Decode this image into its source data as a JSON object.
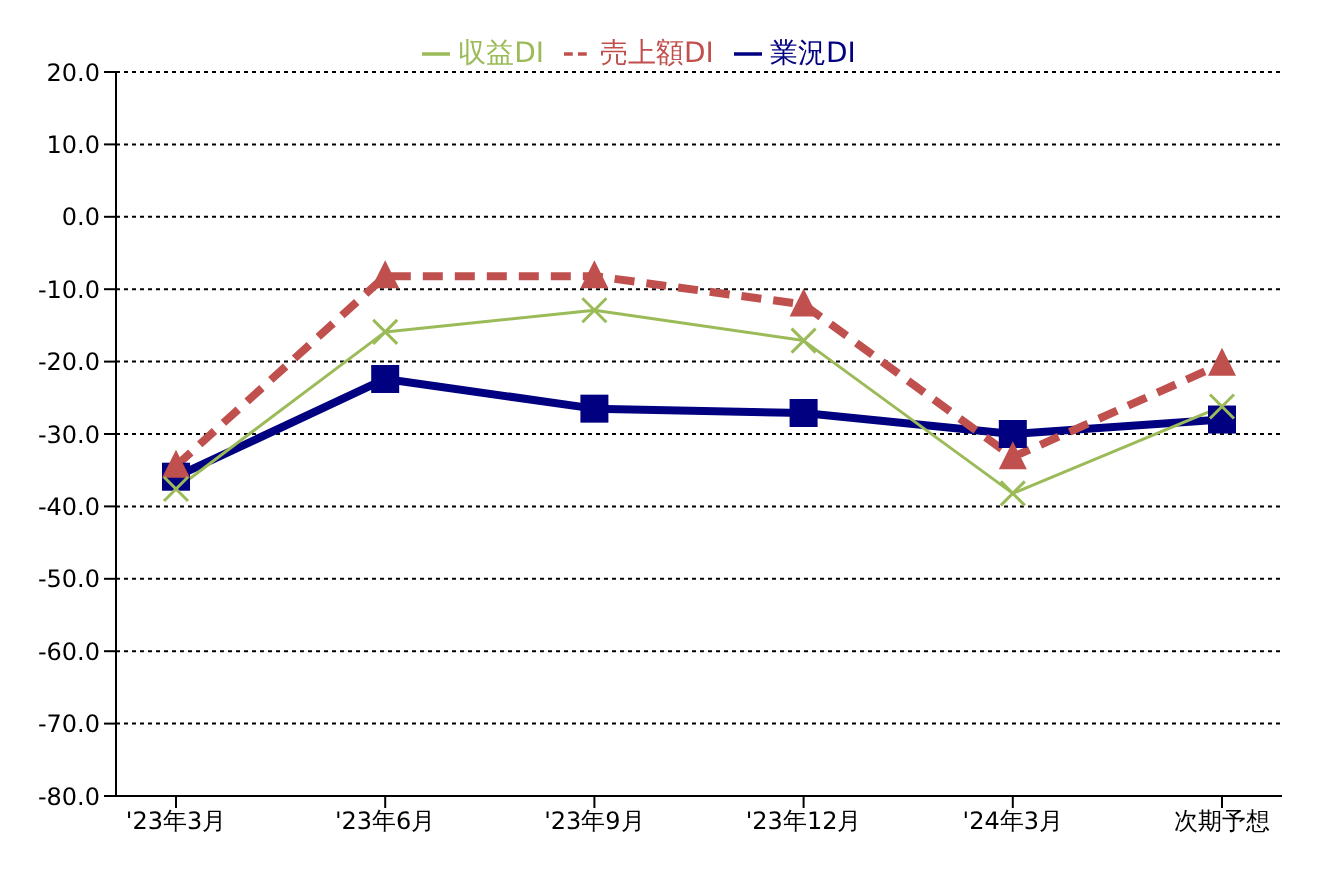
{
  "chart_data": {
    "type": "line",
    "categories": [
      "'23年3月",
      "'23年6月",
      "'23年9月",
      "'23年12月",
      "'24年3月",
      "次期予想"
    ],
    "series": [
      {
        "name": "業況DI",
        "color": "#000080",
        "marker": "square",
        "line_style": "solid",
        "values": [
          -35.9,
          -22.4,
          -26.5,
          -27.1,
          -30.0,
          -28.0
        ]
      },
      {
        "name": "売上額DI",
        "color": "#c0504d",
        "marker": "triangle",
        "line_style": "dashed",
        "values": [
          -34.4,
          -8.2,
          -8.2,
          -12.1,
          -33.2,
          -20.3
        ]
      },
      {
        "name": "収益DI",
        "color": "#9bbb59",
        "marker": "cross",
        "line_style": "solid",
        "values": [
          -37.6,
          -15.9,
          -12.9,
          -17.1,
          -38.2,
          -26.2
        ]
      }
    ],
    "ylim": [
      -80,
      20
    ],
    "yticks": [
      {
        "value": 20,
        "label": "20.0"
      },
      {
        "value": 10,
        "label": "10.0"
      },
      {
        "value": 0,
        "label": "0.0"
      },
      {
        "value": -10,
        "label": "-10.0"
      },
      {
        "value": -20,
        "label": "-20.0"
      },
      {
        "value": -30,
        "label": "-30.0"
      },
      {
        "value": -40,
        "label": "-40.0"
      },
      {
        "value": -50,
        "label": "-50.0"
      },
      {
        "value": -60,
        "label": "-60.0"
      },
      {
        "value": -70,
        "label": "-70.0"
      },
      {
        "value": -80,
        "label": "-80.0"
      }
    ],
    "grid": "y",
    "legend": "top"
  }
}
